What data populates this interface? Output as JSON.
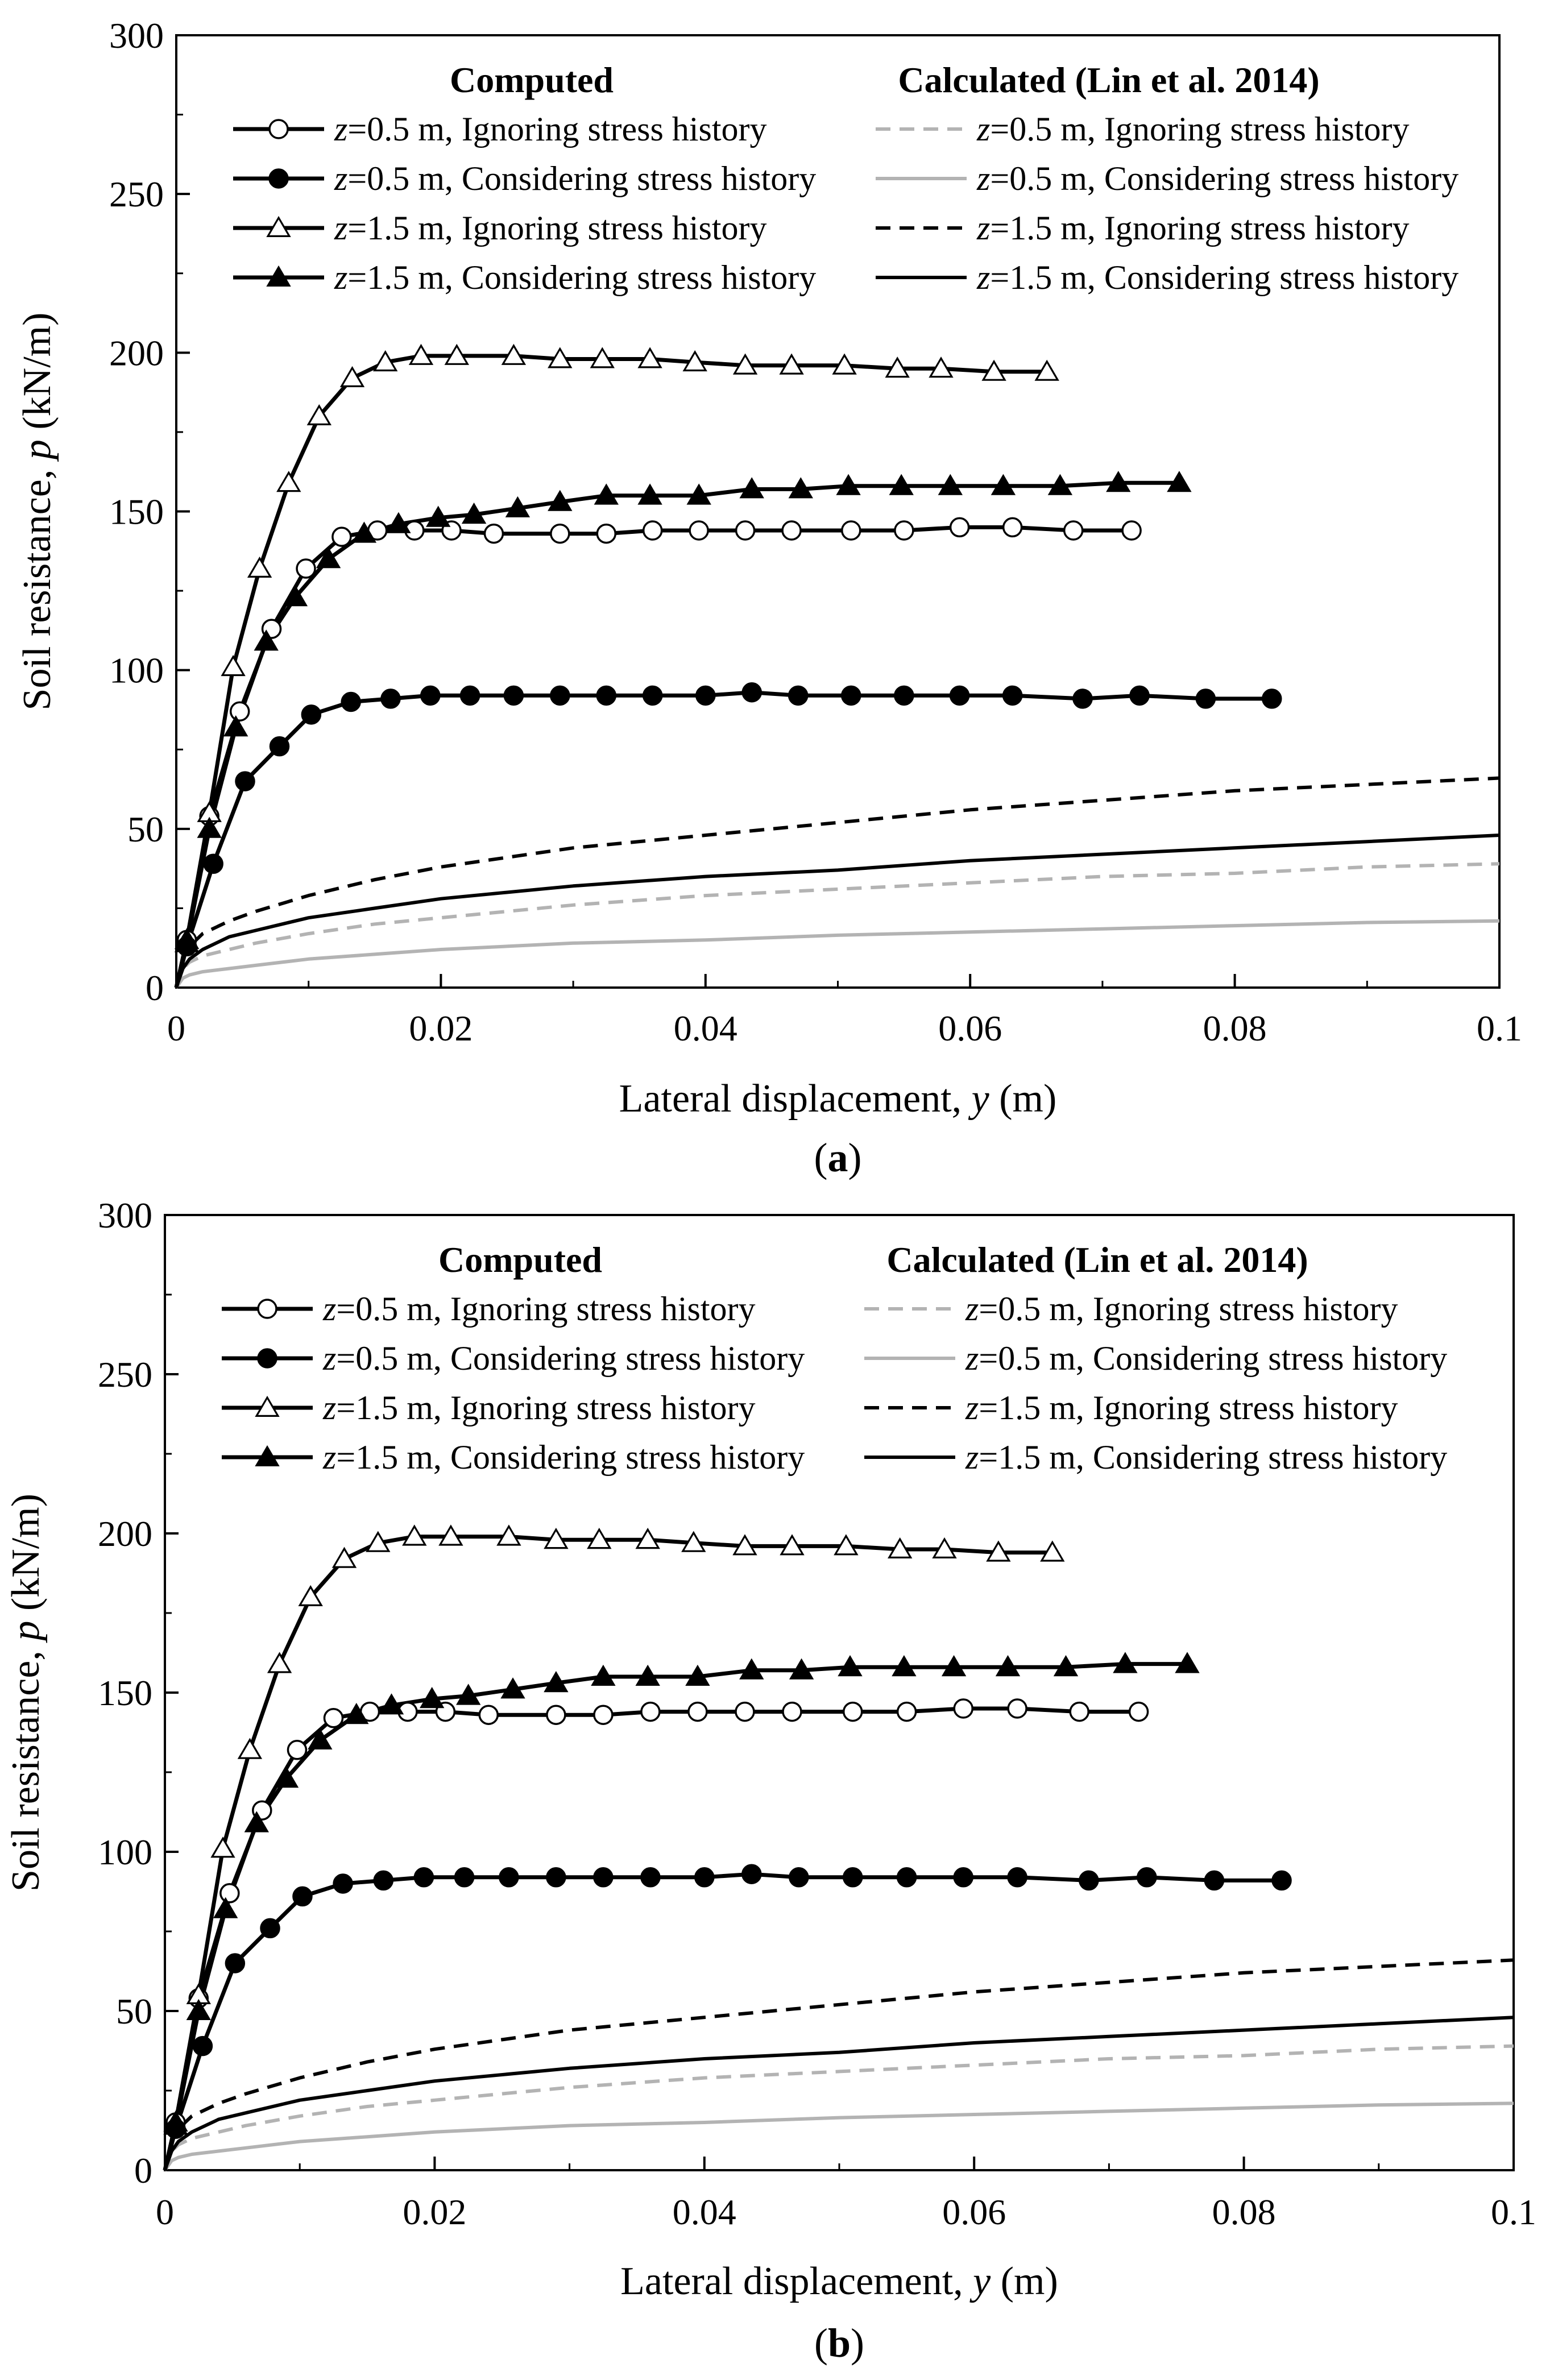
{
  "colors": {
    "computed": "#000000",
    "lin_dark": "#000000",
    "lin_light": "#b3b3b3"
  },
  "chart_data": [
    {
      "type": "line",
      "panel_label": "a",
      "xlabel": "Lateral displacement, ",
      "xlabel_var": "y",
      "xlabel_unit": " (m)",
      "ylabel": "Soil resistance, ",
      "ylabel_var": "p",
      "ylabel_unit": " (kN/m)",
      "xlim": [
        0,
        0.1
      ],
      "ylim": [
        0,
        300
      ],
      "xticks": [
        0,
        0.02,
        0.04,
        0.06,
        0.08,
        0.1
      ],
      "xtick_labels": [
        "0",
        "0.02",
        "0.04",
        "0.06",
        "0.08",
        "0.1"
      ],
      "yticks": [
        0,
        50,
        100,
        150,
        200,
        250,
        300
      ],
      "ytick_labels": [
        "0",
        "50",
        "100",
        "150",
        "200",
        "250",
        "300"
      ],
      "legend_headers": [
        "Computed",
        "Calculated (Lin et al. 2014)"
      ],
      "series": [
        {
          "name": "=0.5 m, Ignoring stress history",
          "var": "z",
          "group": "computed",
          "style": "solid",
          "color": "#000000",
          "marker": "circle-open",
          "x": [
            0,
            0.0008,
            0.0025,
            0.0048,
            0.0072,
            0.0098,
            0.0125,
            0.0152,
            0.018,
            0.0208,
            0.024,
            0.029,
            0.0325,
            0.036,
            0.0395,
            0.043,
            0.0465,
            0.051,
            0.055,
            0.0592,
            0.0632,
            0.0678,
            0.0722
          ],
          "y": [
            0,
            15,
            54,
            87,
            113,
            132,
            142,
            144,
            144,
            144,
            143,
            143,
            143,
            144,
            144,
            144,
            144,
            144,
            144,
            145,
            145,
            144,
            144
          ]
        },
        {
          "name": "=0.5 m, Considering stress history",
          "var": "z",
          "group": "computed",
          "style": "solid",
          "color": "#000000",
          "marker": "circle-filled",
          "x": [
            0,
            0.0008,
            0.0028,
            0.0052,
            0.0078,
            0.0102,
            0.0132,
            0.0162,
            0.0192,
            0.0222,
            0.0255,
            0.029,
            0.0325,
            0.036,
            0.04,
            0.0435,
            0.047,
            0.051,
            0.055,
            0.0592,
            0.0632,
            0.0685,
            0.0728,
            0.0778,
            0.0828
          ],
          "y": [
            0,
            13,
            39,
            65,
            76,
            86,
            90,
            91,
            92,
            92,
            92,
            92,
            92,
            92,
            92,
            93,
            92,
            92,
            92,
            92,
            92,
            91,
            92,
            91,
            91
          ]
        },
        {
          "name": "=1.5 m, Ignoring stress history",
          "var": "z",
          "group": "computed",
          "style": "solid",
          "color": "#000000",
          "marker": "triangle-open",
          "x": [
            0,
            0.0008,
            0.0025,
            0.0043,
            0.0063,
            0.0085,
            0.0108,
            0.0133,
            0.0158,
            0.0185,
            0.0212,
            0.0255,
            0.029,
            0.0322,
            0.0358,
            0.0392,
            0.043,
            0.0465,
            0.0505,
            0.0545,
            0.0578,
            0.0618,
            0.0658
          ],
          "y": [
            0,
            15,
            55,
            101,
            132,
            159,
            180,
            192,
            197,
            199,
            199,
            199,
            198,
            198,
            198,
            197,
            196,
            196,
            196,
            195,
            195,
            194,
            194
          ]
        },
        {
          "name": "=1.5 m, Considering stress history",
          "var": "z",
          "group": "computed",
          "style": "solid",
          "color": "#000000",
          "marker": "triangle-filled",
          "x": [
            0,
            0.0008,
            0.0025,
            0.0045,
            0.0068,
            0.009,
            0.0115,
            0.0142,
            0.0168,
            0.0198,
            0.0225,
            0.0258,
            0.029,
            0.0325,
            0.0358,
            0.0395,
            0.0435,
            0.0472,
            0.0508,
            0.0548,
            0.0585,
            0.0625,
            0.0668,
            0.0712,
            0.0758
          ],
          "y": [
            0,
            14,
            50,
            82,
            109,
            123,
            135,
            143,
            146,
            148,
            149,
            151,
            153,
            155,
            155,
            155,
            157,
            157,
            158,
            158,
            158,
            158,
            158,
            159,
            159
          ]
        },
        {
          "name": "=0.5 m, Ignoring stress history",
          "var": "z",
          "group": "calculated",
          "style": "dashed",
          "color": "#b3b3b3",
          "marker": "none",
          "x": [
            0,
            0.0005,
            0.001,
            0.002,
            0.004,
            0.006,
            0.01,
            0.015,
            0.02,
            0.03,
            0.04,
            0.05,
            0.06,
            0.07,
            0.08,
            0.09,
            0.1
          ],
          "y": [
            0,
            6,
            8,
            10,
            12,
            14,
            17,
            20,
            22,
            26,
            29,
            31,
            33,
            35,
            36,
            38,
            39
          ]
        },
        {
          "name": "=0.5 m, Considering stress history",
          "var": "z",
          "group": "calculated",
          "style": "solid",
          "color": "#b3b3b3",
          "marker": "none",
          "x": [
            0,
            0.0005,
            0.001,
            0.002,
            0.004,
            0.006,
            0.01,
            0.015,
            0.02,
            0.03,
            0.04,
            0.05,
            0.06,
            0.07,
            0.08,
            0.09,
            0.1
          ],
          "y": [
            0,
            3,
            4,
            5,
            6,
            7,
            9,
            10.5,
            12,
            14,
            15,
            16.5,
            17.5,
            18.5,
            19.5,
            20.5,
            21
          ]
        },
        {
          "name": "=1.5 m, Ignoring stress history",
          "var": "z",
          "group": "calculated",
          "style": "dashed",
          "color": "#000000",
          "marker": "none",
          "x": [
            0,
            0.0005,
            0.001,
            0.002,
            0.004,
            0.006,
            0.01,
            0.015,
            0.02,
            0.03,
            0.04,
            0.05,
            0.06,
            0.07,
            0.08,
            0.09,
            0.1
          ],
          "y": [
            0,
            9,
            13,
            17,
            21,
            24,
            29,
            34,
            38,
            44,
            48,
            52,
            56,
            59,
            62,
            64,
            66
          ]
        },
        {
          "name": "=1.5 m, Considering stress history",
          "var": "z",
          "group": "calculated",
          "style": "solid",
          "color": "#000000",
          "marker": "none",
          "x": [
            0,
            0.0005,
            0.001,
            0.002,
            0.004,
            0.006,
            0.01,
            0.015,
            0.02,
            0.03,
            0.04,
            0.05,
            0.06,
            0.07,
            0.08,
            0.09,
            0.1
          ],
          "y": [
            0,
            6,
            9,
            12,
            16,
            18,
            22,
            25,
            28,
            32,
            35,
            37,
            40,
            42,
            44,
            46,
            48
          ]
        }
      ]
    },
    {
      "type": "line",
      "panel_label": "b",
      "xlabel": "Lateral displacement, ",
      "xlabel_var": "y",
      "xlabel_unit": " (m)",
      "ylabel": "Soil resistance, ",
      "ylabel_var": "p",
      "ylabel_unit": " (kN/m)",
      "xlim": [
        0,
        0.1
      ],
      "ylim": [
        0,
        300
      ],
      "xticks": [
        0,
        0.02,
        0.04,
        0.06,
        0.08,
        0.1
      ],
      "xtick_labels": [
        "0",
        "0.02",
        "0.04",
        "0.06",
        "0.08",
        "0.1"
      ],
      "yticks": [
        0,
        50,
        100,
        150,
        200,
        250,
        300
      ],
      "ytick_labels": [
        "0",
        "50",
        "100",
        "150",
        "200",
        "250",
        "300"
      ],
      "legend_headers": [
        "Computed",
        "Calculated (Lin et al. 2014)"
      ],
      "series": [
        {
          "name": "=0.5 m, Ignoring stress history",
          "var": "z",
          "group": "computed",
          "style": "solid",
          "color": "#000000",
          "marker": "circle-open",
          "x": [
            0,
            0.0008,
            0.0025,
            0.0048,
            0.0072,
            0.0098,
            0.0125,
            0.0152,
            0.018,
            0.0208,
            0.024,
            0.029,
            0.0325,
            0.036,
            0.0395,
            0.043,
            0.0465,
            0.051,
            0.055,
            0.0592,
            0.0632,
            0.0678,
            0.0722
          ],
          "y": [
            0,
            15,
            54,
            87,
            113,
            132,
            142,
            144,
            144,
            144,
            143,
            143,
            143,
            144,
            144,
            144,
            144,
            144,
            144,
            145,
            145,
            144,
            144
          ]
        },
        {
          "name": "=0.5 m, Considering stress history",
          "var": "z",
          "group": "computed",
          "style": "solid",
          "color": "#000000",
          "marker": "circle-filled",
          "x": [
            0,
            0.0008,
            0.0028,
            0.0052,
            0.0078,
            0.0102,
            0.0132,
            0.0162,
            0.0192,
            0.0222,
            0.0255,
            0.029,
            0.0325,
            0.036,
            0.04,
            0.0435,
            0.047,
            0.051,
            0.055,
            0.0592,
            0.0632,
            0.0685,
            0.0728,
            0.0778,
            0.0828
          ],
          "y": [
            0,
            13,
            39,
            65,
            76,
            86,
            90,
            91,
            92,
            92,
            92,
            92,
            92,
            92,
            92,
            93,
            92,
            92,
            92,
            92,
            92,
            91,
            92,
            91,
            91
          ]
        },
        {
          "name": "=1.5 m, Ignoring stress history",
          "var": "z",
          "group": "computed",
          "style": "solid",
          "color": "#000000",
          "marker": "triangle-open",
          "x": [
            0,
            0.0008,
            0.0025,
            0.0043,
            0.0063,
            0.0085,
            0.0108,
            0.0133,
            0.0158,
            0.0185,
            0.0212,
            0.0255,
            0.029,
            0.0322,
            0.0358,
            0.0392,
            0.043,
            0.0465,
            0.0505,
            0.0545,
            0.0578,
            0.0618,
            0.0658
          ],
          "y": [
            0,
            15,
            55,
            101,
            132,
            159,
            180,
            192,
            197,
            199,
            199,
            199,
            198,
            198,
            198,
            197,
            196,
            196,
            196,
            195,
            195,
            194,
            194
          ]
        },
        {
          "name": "=1.5 m, Considering stress history",
          "var": "z",
          "group": "computed",
          "style": "solid",
          "color": "#000000",
          "marker": "triangle-filled",
          "x": [
            0,
            0.0008,
            0.0025,
            0.0045,
            0.0068,
            0.009,
            0.0115,
            0.0142,
            0.0168,
            0.0198,
            0.0225,
            0.0258,
            0.029,
            0.0325,
            0.0358,
            0.0395,
            0.0435,
            0.0472,
            0.0508,
            0.0548,
            0.0585,
            0.0625,
            0.0668,
            0.0712,
            0.0758
          ],
          "y": [
            0,
            14,
            50,
            82,
            109,
            123,
            135,
            143,
            146,
            148,
            149,
            151,
            153,
            155,
            155,
            155,
            157,
            157,
            158,
            158,
            158,
            158,
            158,
            159,
            159
          ]
        },
        {
          "name": "=0.5 m, Ignoring stress history",
          "var": "z",
          "group": "calculated",
          "style": "dashed",
          "color": "#b3b3b3",
          "marker": "none",
          "x": [
            0,
            0.0005,
            0.001,
            0.002,
            0.004,
            0.006,
            0.01,
            0.015,
            0.02,
            0.03,
            0.04,
            0.05,
            0.06,
            0.07,
            0.08,
            0.09,
            0.1
          ],
          "y": [
            0,
            6,
            8,
            10,
            12,
            14,
            17,
            20,
            22,
            26,
            29,
            31,
            33,
            35,
            36,
            38,
            39
          ]
        },
        {
          "name": "=0.5 m, Considering stress history",
          "var": "z",
          "group": "calculated",
          "style": "solid",
          "color": "#b3b3b3",
          "marker": "none",
          "x": [
            0,
            0.0005,
            0.001,
            0.002,
            0.004,
            0.006,
            0.01,
            0.015,
            0.02,
            0.03,
            0.04,
            0.05,
            0.06,
            0.07,
            0.08,
            0.09,
            0.1
          ],
          "y": [
            0,
            3,
            4,
            5,
            6,
            7,
            9,
            10.5,
            12,
            14,
            15,
            16.5,
            17.5,
            18.5,
            19.5,
            20.5,
            21
          ]
        },
        {
          "name": "=1.5 m, Ignoring stress history",
          "var": "z",
          "group": "calculated",
          "style": "dashed",
          "color": "#000000",
          "marker": "none",
          "x": [
            0,
            0.0005,
            0.001,
            0.002,
            0.004,
            0.006,
            0.01,
            0.015,
            0.02,
            0.03,
            0.04,
            0.05,
            0.06,
            0.07,
            0.08,
            0.09,
            0.1
          ],
          "y": [
            0,
            9,
            13,
            17,
            21,
            24,
            29,
            34,
            38,
            44,
            48,
            52,
            56,
            59,
            62,
            64,
            66
          ]
        },
        {
          "name": "=1.5 m, Considering stress history",
          "var": "z",
          "group": "calculated",
          "style": "solid",
          "color": "#000000",
          "marker": "none",
          "x": [
            0,
            0.0005,
            0.001,
            0.002,
            0.004,
            0.006,
            0.01,
            0.015,
            0.02,
            0.03,
            0.04,
            0.05,
            0.06,
            0.07,
            0.08,
            0.09,
            0.1
          ],
          "y": [
            0,
            6,
            9,
            12,
            16,
            18,
            22,
            25,
            28,
            32,
            35,
            37,
            40,
            42,
            44,
            46,
            48
          ]
        }
      ]
    }
  ]
}
